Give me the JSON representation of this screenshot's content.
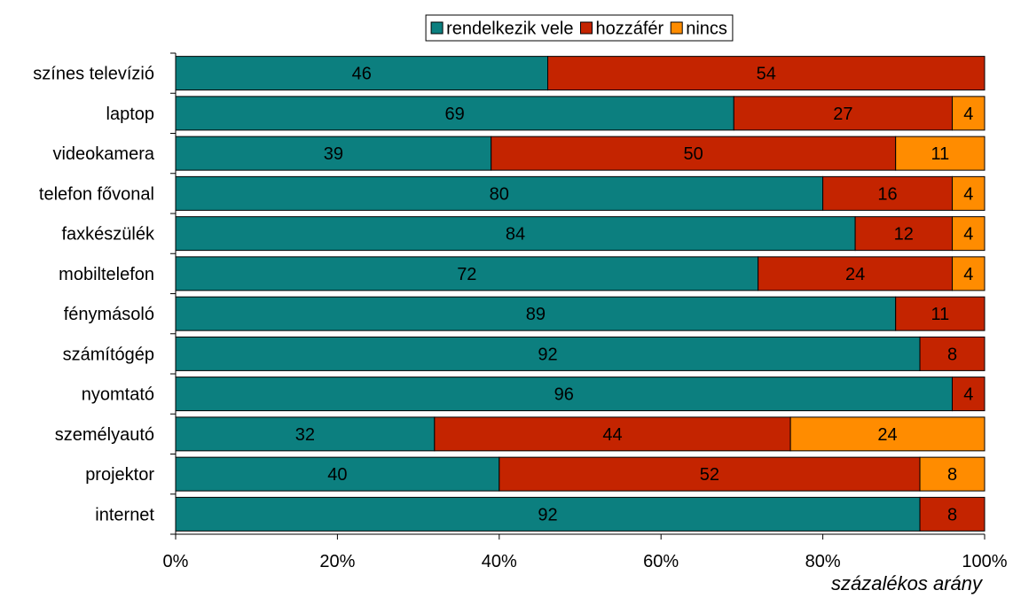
{
  "chart_data": {
    "type": "bar",
    "orientation": "horizontal",
    "stacked": true,
    "categories": [
      "színes televízió",
      "laptop",
      "videokamera",
      "telefon fővonal",
      "faxkészülék",
      "mobiltelefon",
      "fénymásoló",
      "számítógép",
      "nyomtató",
      "személyautó",
      "projektor",
      "internet"
    ],
    "series": [
      {
        "name": "rendelkezik vele",
        "color": "#0c7f7f",
        "values": [
          46,
          69,
          39,
          80,
          84,
          72,
          89,
          92,
          96,
          32,
          40,
          92
        ]
      },
      {
        "name": "hozzáfér",
        "color": "#c42400",
        "values": [
          54,
          27,
          50,
          16,
          12,
          24,
          11,
          8,
          4,
          44,
          52,
          8
        ]
      },
      {
        "name": "nincs",
        "color": "#ff8c00",
        "values": [
          0,
          4,
          11,
          4,
          4,
          4,
          0,
          0,
          0,
          24,
          8,
          0
        ]
      }
    ],
    "xlim": [
      0,
      100
    ],
    "xticks": [
      "0%",
      "20%",
      "40%",
      "60%",
      "80%",
      "100%"
    ],
    "xlabel": "százalékos arány",
    "ylabel": "",
    "title": "",
    "legend_position": "top",
    "grid": false
  }
}
